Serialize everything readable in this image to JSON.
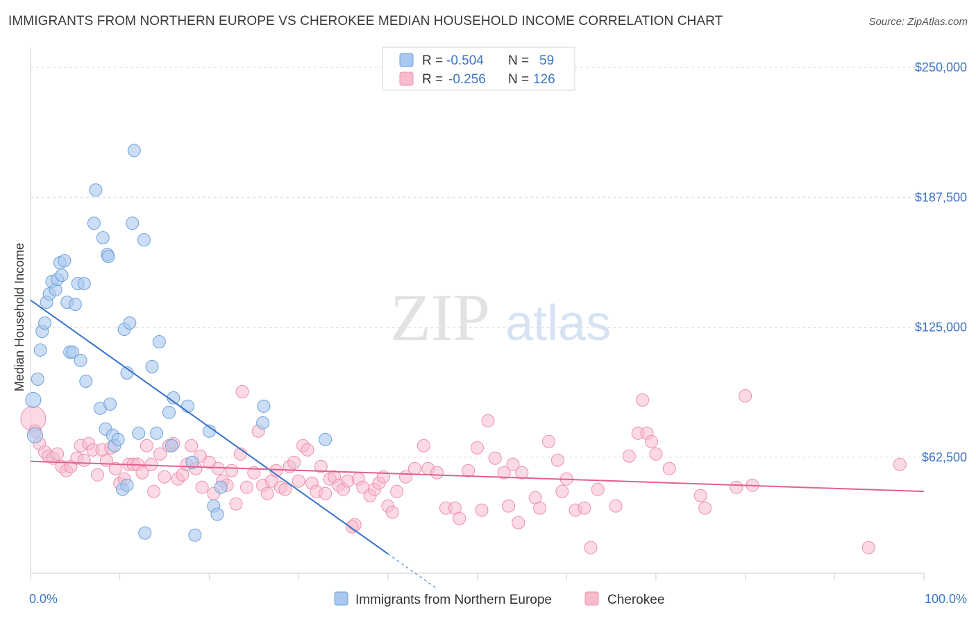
{
  "title": "IMMIGRANTS FROM NORTHERN EUROPE VS CHEROKEE MEDIAN HOUSEHOLD INCOME CORRELATION CHART",
  "source": "Source: ZipAtlas.com",
  "watermark": {
    "zip": "ZIP",
    "atlas": "atlas"
  },
  "legend": {
    "rows": [
      {
        "r_label": "R =",
        "r_value": "-0.504",
        "n_label": "N =",
        "n_value": "59"
      },
      {
        "r_label": "R =",
        "r_value": "-0.256",
        "n_label": "N =",
        "n_value": "126"
      }
    ]
  },
  "colors": {
    "blue_fill": "#a9c8ef",
    "blue_stroke": "#6f9fd8",
    "blue_line": "#3471c9",
    "pink_fill": "#f7bccd",
    "pink_stroke": "#ec8fac",
    "pink_line": "#e0618b",
    "axis_text": "#3d74c7",
    "grid": "#d9d9d9"
  },
  "chart_data": {
    "type": "scatter",
    "title": "IMMIGRANTS FROM NORTHERN EUROPE VS CHEROKEE MEDIAN HOUSEHOLD INCOME CORRELATION CHART",
    "xlabel": "",
    "ylabel": "Median Household Income",
    "xlim": [
      0,
      100
    ],
    "ylim": [
      0,
      260000
    ],
    "x_tick_labels": [
      "0.0%",
      "100.0%"
    ],
    "y_ticks": [
      {
        "value": 62500,
        "label": "$62,500"
      },
      {
        "value": 125000,
        "label": "$125,000"
      },
      {
        "value": 187500,
        "label": "$187,500"
      },
      {
        "value": 250000,
        "label": "$250,000"
      }
    ],
    "grid": true,
    "legend_position": "top-center",
    "series": [
      {
        "name": "Immigrants from Northern Europe",
        "color": "#a9c8ef",
        "trendline": {
          "x": [
            0,
            40
          ],
          "y": [
            138000,
            16000
          ],
          "dashed_extension": {
            "x": [
              40,
              45.5
            ],
            "y": [
              16000,
              -800
            ]
          }
        },
        "points": [
          [
            0.3,
            90000
          ],
          [
            0.5,
            73000
          ],
          [
            0.8,
            100000
          ],
          [
            1.1,
            114000
          ],
          [
            1.3,
            123000
          ],
          [
            1.6,
            127000
          ],
          [
            1.8,
            137000
          ],
          [
            2.1,
            141000
          ],
          [
            2.4,
            147000
          ],
          [
            2.8,
            143000
          ],
          [
            3.0,
            148000
          ],
          [
            3.3,
            156000
          ],
          [
            3.5,
            150000
          ],
          [
            3.8,
            157000
          ],
          [
            4.1,
            137000
          ],
          [
            4.4,
            113000
          ],
          [
            4.7,
            113000
          ],
          [
            5.0,
            136000
          ],
          [
            5.3,
            146000
          ],
          [
            5.6,
            109000
          ],
          [
            6.0,
            146000
          ],
          [
            6.2,
            99000
          ],
          [
            7.3,
            191000
          ],
          [
            7.1,
            175000
          ],
          [
            8.1,
            168000
          ],
          [
            8.6,
            160000
          ],
          [
            8.7,
            159000
          ],
          [
            7.8,
            86000
          ],
          [
            8.4,
            76000
          ],
          [
            8.9,
            88000
          ],
          [
            9.2,
            73000
          ],
          [
            9.4,
            68000
          ],
          [
            9.8,
            71000
          ],
          [
            10.3,
            47000
          ],
          [
            10.5,
            124000
          ],
          [
            10.8,
            49000
          ],
          [
            10.8,
            103000
          ],
          [
            11.1,
            127000
          ],
          [
            11.4,
            175000
          ],
          [
            11.6,
            210000
          ],
          [
            12.1,
            74000
          ],
          [
            12.7,
            167000
          ],
          [
            12.8,
            26000
          ],
          [
            13.6,
            106000
          ],
          [
            14.1,
            74000
          ],
          [
            14.4,
            118000
          ],
          [
            15.8,
            68000
          ],
          [
            15.5,
            84000
          ],
          [
            16.0,
            91000
          ],
          [
            17.6,
            87000
          ],
          [
            18.1,
            60000
          ],
          [
            18.4,
            25000
          ],
          [
            20.0,
            75000
          ],
          [
            20.5,
            39000
          ],
          [
            20.9,
            35000
          ],
          [
            21.3,
            48000
          ],
          [
            26.0,
            79000
          ],
          [
            26.1,
            87000
          ],
          [
            33.0,
            71000
          ]
        ]
      },
      {
        "name": "Cherokee",
        "color": "#f7bccd",
        "trendline": {
          "x": [
            0,
            100
          ],
          "y": [
            60500,
            46000
          ]
        },
        "points": [
          [
            0.3,
            81000
          ],
          [
            0.5,
            75000
          ],
          [
            1.0,
            69000
          ],
          [
            1.6,
            65000
          ],
          [
            2.0,
            63000
          ],
          [
            2.5,
            62000
          ],
          [
            3.0,
            64000
          ],
          [
            3.5,
            58000
          ],
          [
            4.0,
            56000
          ],
          [
            4.5,
            58000
          ],
          [
            5.2,
            62000
          ],
          [
            5.6,
            68000
          ],
          [
            6.0,
            61000
          ],
          [
            6.5,
            69000
          ],
          [
            7.0,
            66000
          ],
          [
            7.5,
            54000
          ],
          [
            8.0,
            66000
          ],
          [
            8.5,
            61000
          ],
          [
            9.0,
            67000
          ],
          [
            9.5,
            57000
          ],
          [
            10.0,
            50000
          ],
          [
            10.5,
            52000
          ],
          [
            11.0,
            59000
          ],
          [
            11.5,
            59000
          ],
          [
            12.0,
            59000
          ],
          [
            12.5,
            55000
          ],
          [
            13.0,
            68000
          ],
          [
            13.5,
            59000
          ],
          [
            13.8,
            46000
          ],
          [
            14.5,
            64000
          ],
          [
            15.0,
            53000
          ],
          [
            15.5,
            68000
          ],
          [
            16.0,
            69000
          ],
          [
            16.5,
            52000
          ],
          [
            17.0,
            54000
          ],
          [
            17.5,
            59000
          ],
          [
            18.0,
            68000
          ],
          [
            18.5,
            57000
          ],
          [
            19.0,
            63000
          ],
          [
            19.2,
            48000
          ],
          [
            20.0,
            60000
          ],
          [
            20.5,
            45000
          ],
          [
            21.0,
            57000
          ],
          [
            21.5,
            51000
          ],
          [
            22.0,
            49000
          ],
          [
            22.5,
            56000
          ],
          [
            23.0,
            40000
          ],
          [
            23.5,
            64000
          ],
          [
            23.7,
            94000
          ],
          [
            24.2,
            48000
          ],
          [
            25.0,
            55000
          ],
          [
            25.5,
            75000
          ],
          [
            26.0,
            49000
          ],
          [
            26.5,
            45000
          ],
          [
            27.0,
            51000
          ],
          [
            27.5,
            56000
          ],
          [
            28.0,
            48000
          ],
          [
            28.5,
            47000
          ],
          [
            29.0,
            58000
          ],
          [
            29.5,
            60000
          ],
          [
            30.0,
            51000
          ],
          [
            30.5,
            68000
          ],
          [
            31.0,
            66000
          ],
          [
            31.5,
            50000
          ],
          [
            32.0,
            46000
          ],
          [
            32.5,
            58000
          ],
          [
            33.0,
            45000
          ],
          [
            33.5,
            52000
          ],
          [
            34.0,
            53000
          ],
          [
            34.5,
            49000
          ],
          [
            35.0,
            47000
          ],
          [
            35.5,
            51000
          ],
          [
            36.0,
            29000
          ],
          [
            36.3,
            30000
          ],
          [
            36.7,
            52000
          ],
          [
            37.2,
            48000
          ],
          [
            38.0,
            44000
          ],
          [
            38.5,
            47000
          ],
          [
            39.0,
            50000
          ],
          [
            39.5,
            53000
          ],
          [
            40.0,
            39000
          ],
          [
            40.5,
            36000
          ],
          [
            41.0,
            46000
          ],
          [
            42.0,
            53000
          ],
          [
            43.0,
            57000
          ],
          [
            44.0,
            68000
          ],
          [
            44.5,
            57000
          ],
          [
            45.5,
            55000
          ],
          [
            46.5,
            38000
          ],
          [
            47.5,
            38000
          ],
          [
            48.0,
            33000
          ],
          [
            49.0,
            56000
          ],
          [
            50.0,
            67000
          ],
          [
            50.5,
            37000
          ],
          [
            51.2,
            80000
          ],
          [
            52.0,
            62000
          ],
          [
            53.0,
            55000
          ],
          [
            53.5,
            39000
          ],
          [
            54.0,
            59000
          ],
          [
            54.6,
            31000
          ],
          [
            55.0,
            55000
          ],
          [
            56.5,
            43000
          ],
          [
            57.0,
            38000
          ],
          [
            58.0,
            70000
          ],
          [
            59.0,
            61000
          ],
          [
            59.5,
            46000
          ],
          [
            60.0,
            52000
          ],
          [
            61.0,
            37000
          ],
          [
            62.0,
            38000
          ],
          [
            62.7,
            19000
          ],
          [
            63.5,
            47000
          ],
          [
            65.5,
            39000
          ],
          [
            67.0,
            63000
          ],
          [
            68.0,
            74000
          ],
          [
            68.5,
            90000
          ],
          [
            69.0,
            74000
          ],
          [
            69.5,
            70000
          ],
          [
            70.0,
            64000
          ],
          [
            71.5,
            57000
          ],
          [
            75.0,
            44000
          ],
          [
            75.5,
            38000
          ],
          [
            79.0,
            48000
          ],
          [
            80.0,
            92000
          ],
          [
            80.8,
            49000
          ],
          [
            93.8,
            19000
          ],
          [
            97.3,
            59000
          ]
        ]
      }
    ]
  },
  "bottom_legend": {
    "items": [
      {
        "label": "Immigrants from Northern Europe"
      },
      {
        "label": "Cherokee"
      }
    ]
  }
}
